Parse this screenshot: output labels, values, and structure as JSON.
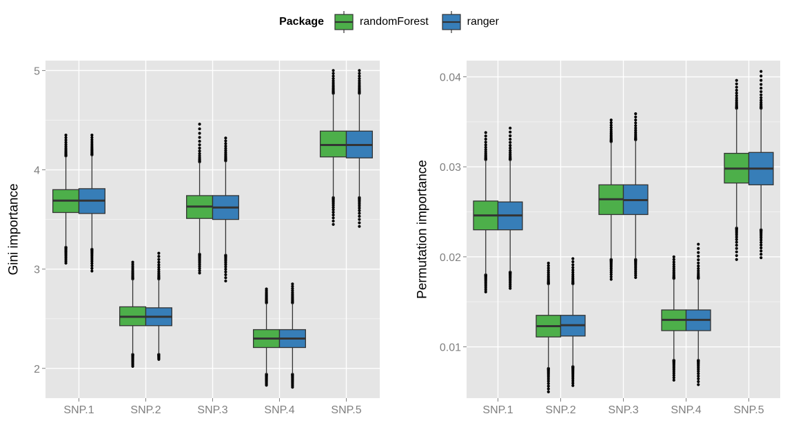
{
  "legend": {
    "title": "Package",
    "items": [
      {
        "label": "randomForest",
        "color": "#4daf4a"
      },
      {
        "label": "ranger",
        "color": "#377eb8"
      }
    ]
  },
  "chart_data": [
    {
      "type": "box",
      "ylabel": "Gini importance",
      "categories": [
        "SNP.1",
        "SNP.2",
        "SNP.3",
        "SNP.4",
        "SNP.5"
      ],
      "ylim": [
        1.7,
        5.1
      ],
      "yticks": [
        2,
        3,
        4,
        5
      ],
      "grid": true,
      "series": [
        {
          "name": "randomForest",
          "boxes": [
            {
              "q1": 3.57,
              "median": 3.69,
              "q3": 3.8,
              "whisker_low": 3.22,
              "whisker_high": 4.14,
              "out_min": 3.06,
              "out_max": 4.35
            },
            {
              "q1": 2.43,
              "median": 2.52,
              "q3": 2.62,
              "whisker_low": 2.14,
              "whisker_high": 2.9,
              "out_min": 2.02,
              "out_max": 3.07
            },
            {
              "q1": 3.51,
              "median": 3.63,
              "q3": 3.74,
              "whisker_low": 3.15,
              "whisker_high": 4.08,
              "out_min": 2.96,
              "out_max": 4.46
            },
            {
              "q1": 2.21,
              "median": 2.3,
              "q3": 2.39,
              "whisker_low": 1.94,
              "whisker_high": 2.66,
              "out_min": 1.83,
              "out_max": 2.8
            },
            {
              "q1": 4.13,
              "median": 4.25,
              "q3": 4.39,
              "whisker_low": 3.72,
              "whisker_high": 4.77,
              "out_min": 3.45,
              "out_max": 5.0
            }
          ]
        },
        {
          "name": "ranger",
          "boxes": [
            {
              "q1": 3.56,
              "median": 3.69,
              "q3": 3.81,
              "whisker_low": 3.2,
              "whisker_high": 4.15,
              "out_min": 2.98,
              "out_max": 4.35
            },
            {
              "q1": 2.43,
              "median": 2.52,
              "q3": 2.61,
              "whisker_low": 2.14,
              "whisker_high": 2.9,
              "out_min": 2.09,
              "out_max": 3.16
            },
            {
              "q1": 3.5,
              "median": 3.62,
              "q3": 3.74,
              "whisker_low": 3.14,
              "whisker_high": 4.09,
              "out_min": 2.88,
              "out_max": 4.32
            },
            {
              "q1": 2.21,
              "median": 2.3,
              "q3": 2.39,
              "whisker_low": 1.94,
              "whisker_high": 2.66,
              "out_min": 1.81,
              "out_max": 2.85
            },
            {
              "q1": 4.12,
              "median": 4.25,
              "q3": 4.39,
              "whisker_low": 3.72,
              "whisker_high": 4.77,
              "out_min": 3.43,
              "out_max": 5.0
            }
          ]
        }
      ]
    },
    {
      "type": "box",
      "ylabel": "Permutation importance",
      "categories": [
        "SNP.1",
        "SNP.2",
        "SNP.3",
        "SNP.4",
        "SNP.5"
      ],
      "ylim": [
        0.0043,
        0.0418
      ],
      "yticks": [
        0.01,
        0.02,
        0.03,
        0.04
      ],
      "ytick_labels": [
        "0.01",
        "0.02",
        "0.03",
        "0.04"
      ],
      "grid": true,
      "series": [
        {
          "name": "randomForest",
          "boxes": [
            {
              "q1": 0.023,
              "median": 0.0246,
              "q3": 0.0262,
              "whisker_low": 0.018,
              "whisker_high": 0.0308,
              "out_min": 0.0161,
              "out_max": 0.0338
            },
            {
              "q1": 0.0111,
              "median": 0.0123,
              "q3": 0.0135,
              "whisker_low": 0.0076,
              "whisker_high": 0.017,
              "out_min": 0.005,
              "out_max": 0.0193
            },
            {
              "q1": 0.0247,
              "median": 0.0264,
              "q3": 0.028,
              "whisker_low": 0.0197,
              "whisker_high": 0.0328,
              "out_min": 0.0175,
              "out_max": 0.0352
            },
            {
              "q1": 0.0118,
              "median": 0.013,
              "q3": 0.0141,
              "whisker_low": 0.0085,
              "whisker_high": 0.0176,
              "out_min": 0.0063,
              "out_max": 0.02
            },
            {
              "q1": 0.0282,
              "median": 0.0298,
              "q3": 0.0315,
              "whisker_low": 0.0232,
              "whisker_high": 0.0365,
              "out_min": 0.0197,
              "out_max": 0.0396
            }
          ]
        },
        {
          "name": "ranger",
          "boxes": [
            {
              "q1": 0.023,
              "median": 0.0246,
              "q3": 0.0261,
              "whisker_low": 0.0183,
              "whisker_high": 0.0308,
              "out_min": 0.0165,
              "out_max": 0.0343
            },
            {
              "q1": 0.0112,
              "median": 0.0124,
              "q3": 0.0135,
              "whisker_low": 0.0078,
              "whisker_high": 0.017,
              "out_min": 0.0057,
              "out_max": 0.0198
            },
            {
              "q1": 0.0247,
              "median": 0.0263,
              "q3": 0.028,
              "whisker_low": 0.0197,
              "whisker_high": 0.033,
              "out_min": 0.0177,
              "out_max": 0.0359
            },
            {
              "q1": 0.0118,
              "median": 0.013,
              "q3": 0.0141,
              "whisker_low": 0.0085,
              "whisker_high": 0.0176,
              "out_min": 0.0058,
              "out_max": 0.0214
            },
            {
              "q1": 0.028,
              "median": 0.0298,
              "q3": 0.0316,
              "whisker_low": 0.023,
              "whisker_high": 0.0365,
              "out_min": 0.0199,
              "out_max": 0.0406
            }
          ]
        }
      ]
    }
  ]
}
